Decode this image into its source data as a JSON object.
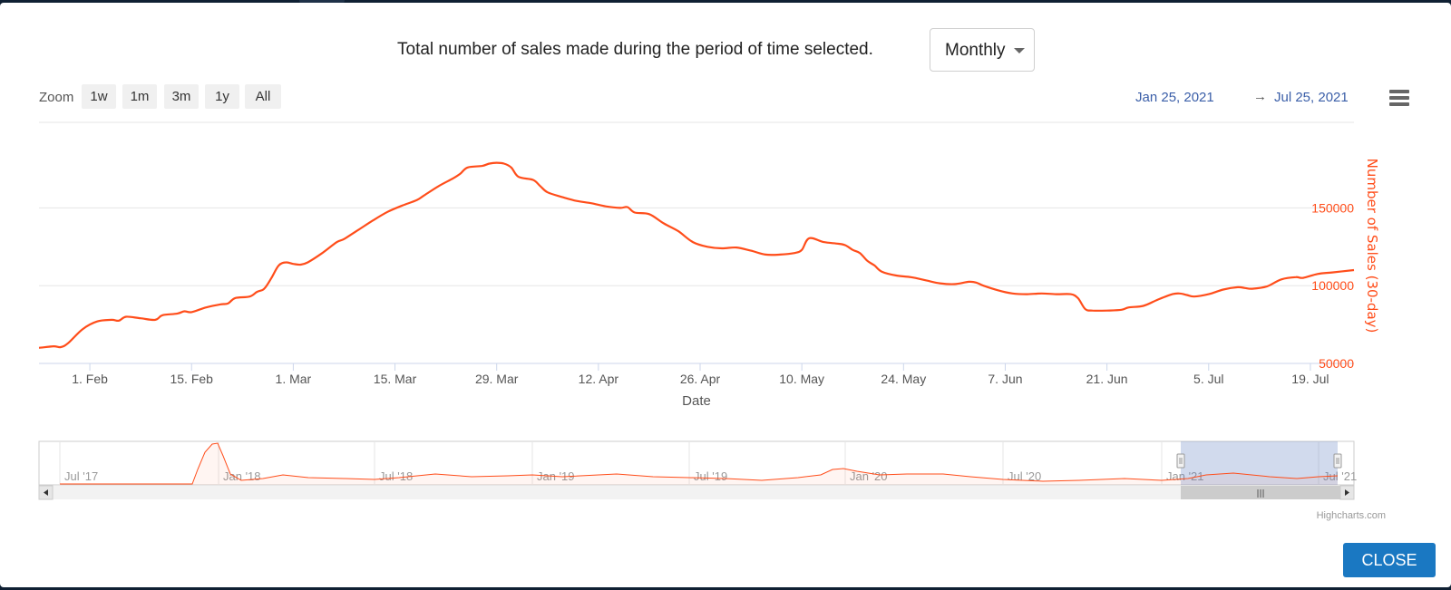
{
  "header": {
    "description": "Total number of sales made during the period of time selected.",
    "period_select": {
      "value": "Monthly"
    }
  },
  "zoom": {
    "label": "Zoom",
    "buttons": [
      "1w",
      "1m",
      "3m",
      "1y",
      "All"
    ]
  },
  "range": {
    "from": "Jan 25, 2021",
    "arrow": "→",
    "to": "Jul 25, 2021"
  },
  "chart_data": {
    "type": "line",
    "title": "Total number of sales made during the period of time selected.",
    "xlabel": "Date",
    "ylabel": "Number of Sales (30-day)",
    "y_ticks": [
      50000,
      100000,
      150000
    ],
    "ylim": [
      50000,
      205000
    ],
    "x_ticks": [
      "1. Feb",
      "15. Feb",
      "1. Mar",
      "15. Mar",
      "29. Mar",
      "12. Apr",
      "26. Apr",
      "10. May",
      "24. May",
      "7. Jun",
      "21. Jun",
      "5. Jul",
      "19. Jul"
    ],
    "x_tick_days": [
      7,
      21,
      35,
      49,
      63,
      77,
      91,
      105,
      119,
      133,
      147,
      161,
      175
    ],
    "x_range_days": [
      0,
      181
    ],
    "series": [
      {
        "name": "Number of Sales (30-day)",
        "color": "#ff4d1a",
        "points": [
          [
            0,
            60000
          ],
          [
            2,
            61000
          ],
          [
            3,
            60500
          ],
          [
            4,
            63000
          ],
          [
            6,
            72000
          ],
          [
            8,
            77000
          ],
          [
            10,
            78000
          ],
          [
            11,
            77500
          ],
          [
            12,
            80000
          ],
          [
            14,
            79000
          ],
          [
            16,
            78000
          ],
          [
            17,
            81000
          ],
          [
            19,
            82000
          ],
          [
            20,
            83500
          ],
          [
            21,
            83000
          ],
          [
            23,
            86000
          ],
          [
            25,
            88000
          ],
          [
            26,
            88500
          ],
          [
            27,
            92000
          ],
          [
            29,
            93000
          ],
          [
            30,
            96000
          ],
          [
            31,
            98000
          ],
          [
            32,
            105000
          ],
          [
            33,
            113000
          ],
          [
            34,
            115000
          ],
          [
            35,
            114000
          ],
          [
            36,
            113500
          ],
          [
            37,
            115000
          ],
          [
            39,
            121000
          ],
          [
            41,
            128000
          ],
          [
            42,
            130000
          ],
          [
            44,
            136000
          ],
          [
            46,
            142000
          ],
          [
            48,
            147500
          ],
          [
            50,
            151500
          ],
          [
            52,
            155000
          ],
          [
            53,
            158000
          ],
          [
            55,
            164000
          ],
          [
            57,
            169000
          ],
          [
            58,
            172000
          ],
          [
            59,
            176000
          ],
          [
            61,
            177000
          ],
          [
            62,
            178500
          ],
          [
            63,
            179000
          ],
          [
            64,
            178500
          ],
          [
            65,
            176000
          ],
          [
            66,
            170000
          ],
          [
            68,
            168000
          ],
          [
            69,
            164000
          ],
          [
            70,
            160000
          ],
          [
            72,
            157000
          ],
          [
            74,
            154500
          ],
          [
            76,
            153000
          ],
          [
            78,
            151000
          ],
          [
            80,
            150000
          ],
          [
            81,
            150500
          ],
          [
            82,
            147000
          ],
          [
            84,
            146000
          ],
          [
            86,
            140000
          ],
          [
            88,
            135000
          ],
          [
            90,
            128000
          ],
          [
            92,
            125000
          ],
          [
            94,
            124000
          ],
          [
            96,
            124500
          ],
          [
            98,
            122500
          ],
          [
            100,
            120000
          ],
          [
            102,
            120000
          ],
          [
            104,
            121000
          ],
          [
            105,
            123000
          ],
          [
            106,
            130500
          ],
          [
            108,
            128000
          ],
          [
            110,
            127000
          ],
          [
            111,
            126000
          ],
          [
            112,
            123000
          ],
          [
            113,
            121000
          ],
          [
            114,
            116000
          ],
          [
            115,
            113000
          ],
          [
            116,
            109000
          ],
          [
            118,
            106500
          ],
          [
            120,
            105500
          ],
          [
            122,
            103500
          ],
          [
            124,
            101500
          ],
          [
            126,
            101000
          ],
          [
            128,
            102500
          ],
          [
            129,
            102000
          ],
          [
            130,
            100000
          ],
          [
            132,
            97000
          ],
          [
            134,
            95000
          ],
          [
            136,
            94500
          ],
          [
            138,
            95000
          ],
          [
            140,
            94500
          ],
          [
            142,
            94500
          ],
          [
            143,
            92000
          ],
          [
            144,
            85000
          ],
          [
            145,
            84000
          ],
          [
            147,
            84000
          ],
          [
            149,
            84500
          ],
          [
            150,
            86000
          ],
          [
            152,
            87000
          ],
          [
            154,
            91000
          ],
          [
            156,
            94500
          ],
          [
            157,
            95000
          ],
          [
            158,
            94000
          ],
          [
            159,
            93000
          ],
          [
            161,
            94500
          ],
          [
            163,
            97500
          ],
          [
            165,
            99000
          ],
          [
            166,
            98500
          ],
          [
            167,
            98000
          ],
          [
            169,
            99500
          ],
          [
            171,
            104000
          ],
          [
            173,
            105500
          ],
          [
            174,
            105000
          ],
          [
            176,
            107500
          ],
          [
            178,
            108500
          ],
          [
            181,
            110000
          ]
        ]
      }
    ],
    "navigator": {
      "labels": [
        "Jul '17",
        "Jan '18",
        "Jul '18",
        "Jan '19",
        "Jul '19",
        "Jan '20",
        "Jul '20",
        "Jan '21",
        "Jul '21"
      ],
      "scrollbar_grip": "|||"
    }
  },
  "credits": "Highcharts.com",
  "footer": {
    "close_label": "CLOSE"
  }
}
